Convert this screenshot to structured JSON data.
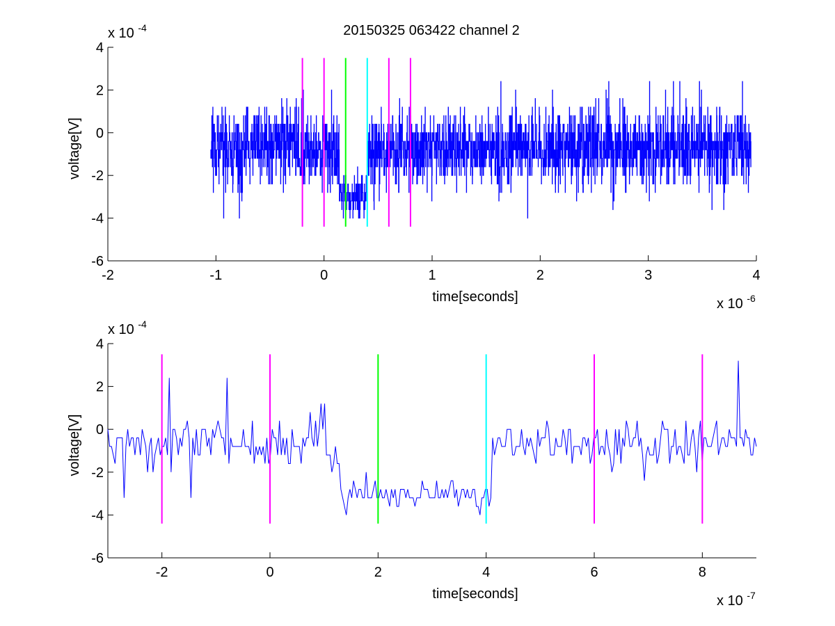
{
  "figure": {
    "title": "20150325 063422 channel 2"
  },
  "chart_data": [
    {
      "type": "line",
      "title": "20150325 063422 channel 2",
      "xlabel": "time[seconds]",
      "ylabel": "voltage[V]",
      "x_multiplier": "x 10",
      "x_exponent": "-6",
      "y_multiplier": "x 10",
      "y_exponent": "-4",
      "xlim": [
        -2,
        4
      ],
      "ylim": [
        -6,
        4
      ],
      "xticks": [
        -2,
        -1,
        0,
        1,
        2,
        3,
        4
      ],
      "yticks": [
        -6,
        -4,
        -2,
        0,
        2,
        4
      ],
      "grid": false,
      "signal": {
        "color": "#0000ff",
        "x_start": -1.05,
        "x_end": 3.95,
        "levels": [
          -0.4,
          -0.8,
          -1.2,
          -1.6,
          -2.0,
          -2.4,
          -2.8,
          -3.2,
          0.0,
          0.4,
          0.8,
          1.2,
          1.6,
          2.0,
          2.4,
          -3.6,
          -4.0
        ],
        "segments": [
          {
            "x0": -1.05,
            "x1": -0.2,
            "mean": -0.6,
            "amp": 1.6
          },
          {
            "x0": -0.2,
            "x1": 0.14,
            "mean": -0.9,
            "amp": 1.4
          },
          {
            "x0": 0.14,
            "x1": 0.4,
            "mean": -2.9,
            "amp": 0.9
          },
          {
            "x0": 0.4,
            "x1": 1.4,
            "mean": -0.8,
            "amp": 1.5
          },
          {
            "x0": 1.4,
            "x1": 3.95,
            "mean": -0.7,
            "amp": 1.6
          }
        ]
      },
      "markers": [
        {
          "x": -0.2,
          "color": "#ff00ff",
          "y_range": [
            -4.4,
            3.5
          ]
        },
        {
          "x": 0.0,
          "color": "#ff00ff",
          "y_range": [
            -4.4,
            3.5
          ]
        },
        {
          "x": 0.2,
          "color": "#00ff00",
          "y_range": [
            -4.4,
            3.5
          ]
        },
        {
          "x": 0.4,
          "color": "#00ffff",
          "y_range": [
            -4.4,
            3.5
          ]
        },
        {
          "x": 0.6,
          "color": "#ff00ff",
          "y_range": [
            -4.4,
            3.5
          ]
        },
        {
          "x": 0.8,
          "color": "#ff00ff",
          "y_range": [
            -4.4,
            3.5
          ]
        }
      ]
    },
    {
      "type": "line",
      "title": "",
      "xlabel": "time[seconds]",
      "ylabel": "voltage[V]",
      "x_multiplier": "x 10",
      "x_exponent": "-7",
      "y_multiplier": "x 10",
      "y_exponent": "-4",
      "xlim": [
        -3,
        9
      ],
      "ylim": [
        -6,
        4
      ],
      "xticks": [
        -2,
        0,
        2,
        4,
        6,
        8
      ],
      "yticks": [
        -6,
        -4,
        -2,
        0,
        2,
        4
      ],
      "grid": false,
      "signal": {
        "color": "#0000ff",
        "x_start": -3,
        "x_end": 9,
        "segments": [
          {
            "x0": -3.0,
            "x1": 1.3,
            "mean": -0.7,
            "amp": 1.0
          },
          {
            "x0": 1.3,
            "x1": 4.1,
            "mean": -3.0,
            "amp": 0.6
          },
          {
            "x0": 4.1,
            "x1": 9.0,
            "mean": -0.7,
            "amp": 1.0
          }
        ],
        "peaks": [
          {
            "x": -2.7,
            "y": -3.2
          },
          {
            "x": -1.85,
            "y": 2.4
          },
          {
            "x": -0.8,
            "y": 2.4
          },
          {
            "x": 1.4,
            "y": -4.0
          },
          {
            "x": 3.9,
            "y": -4.0
          },
          {
            "x": 8.65,
            "y": 3.2
          }
        ]
      },
      "markers": [
        {
          "x": -2,
          "color": "#ff00ff",
          "y_range": [
            -4.4,
            3.5
          ]
        },
        {
          "x": 0,
          "color": "#ff00ff",
          "y_range": [
            -4.4,
            3.5
          ]
        },
        {
          "x": 2,
          "color": "#00ff00",
          "y_range": [
            -4.4,
            3.5
          ]
        },
        {
          "x": 4,
          "color": "#00ffff",
          "y_range": [
            -4.4,
            3.5
          ]
        },
        {
          "x": 6,
          "color": "#ff00ff",
          "y_range": [
            -4.4,
            3.5
          ]
        },
        {
          "x": 8,
          "color": "#ff00ff",
          "y_range": [
            -4.4,
            3.5
          ]
        }
      ]
    }
  ]
}
